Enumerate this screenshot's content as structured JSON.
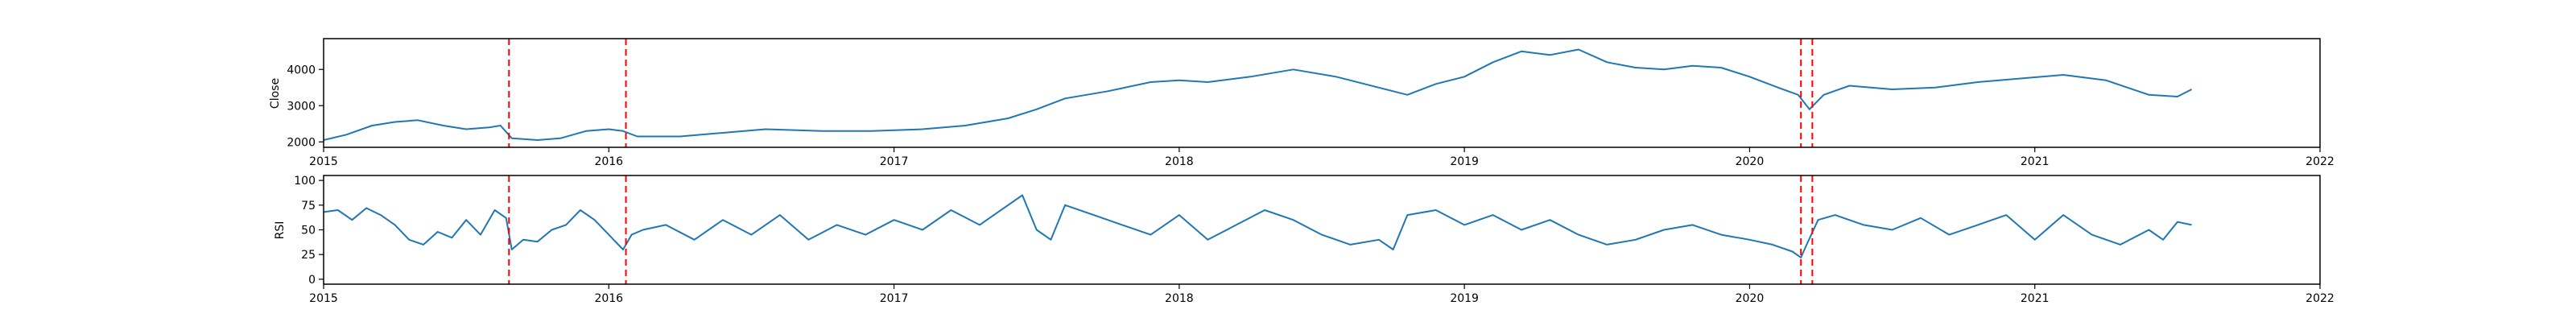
{
  "chart_data": [
    {
      "type": "line",
      "ylabel": "Close",
      "xlim": [
        2015,
        2022
      ],
      "x_ticks": [
        "2015",
        "2016",
        "2017",
        "2018",
        "2019",
        "2020",
        "2021",
        "2022"
      ],
      "ylim": [
        1850,
        4850
      ],
      "y_ticks": [
        2000,
        3000,
        4000
      ],
      "grid": false,
      "vlines": [
        {
          "x": 2015.65,
          "color": "#ff0000",
          "style": "dashed"
        },
        {
          "x": 2016.06,
          "color": "#ff0000",
          "style": "dashed"
        },
        {
          "x": 2020.18,
          "color": "#ff0000",
          "style": "dashed"
        },
        {
          "x": 2020.22,
          "color": "#ff0000",
          "style": "dashed"
        }
      ],
      "series": [
        {
          "color": "#1f77b4",
          "points": [
            [
              2015.0,
              2050
            ],
            [
              2015.08,
              2200
            ],
            [
              2015.17,
              2450
            ],
            [
              2015.25,
              2550
            ],
            [
              2015.33,
              2600
            ],
            [
              2015.42,
              2450
            ],
            [
              2015.5,
              2350
            ],
            [
              2015.58,
              2400
            ],
            [
              2015.62,
              2450
            ],
            [
              2015.66,
              2100
            ],
            [
              2015.75,
              2050
            ],
            [
              2015.83,
              2100
            ],
            [
              2015.92,
              2300
            ],
            [
              2016.0,
              2350
            ],
            [
              2016.05,
              2300
            ],
            [
              2016.1,
              2150
            ],
            [
              2016.25,
              2150
            ],
            [
              2016.4,
              2250
            ],
            [
              2016.55,
              2350
            ],
            [
              2016.75,
              2300
            ],
            [
              2016.92,
              2300
            ],
            [
              2017.1,
              2350
            ],
            [
              2017.25,
              2450
            ],
            [
              2017.4,
              2650
            ],
            [
              2017.5,
              2900
            ],
            [
              2017.6,
              3200
            ],
            [
              2017.75,
              3400
            ],
            [
              2017.9,
              3650
            ],
            [
              2018.0,
              3700
            ],
            [
              2018.1,
              3650
            ],
            [
              2018.25,
              3800
            ],
            [
              2018.4,
              4000
            ],
            [
              2018.55,
              3800
            ],
            [
              2018.65,
              3600
            ],
            [
              2018.8,
              3300
            ],
            [
              2018.9,
              3600
            ],
            [
              2019.0,
              3800
            ],
            [
              2019.1,
              4200
            ],
            [
              2019.2,
              4500
            ],
            [
              2019.3,
              4400
            ],
            [
              2019.4,
              4550
            ],
            [
              2019.5,
              4200
            ],
            [
              2019.6,
              4050
            ],
            [
              2019.7,
              4000
            ],
            [
              2019.8,
              4100
            ],
            [
              2019.9,
              4050
            ],
            [
              2020.0,
              3800
            ],
            [
              2020.1,
              3500
            ],
            [
              2020.17,
              3300
            ],
            [
              2020.21,
              2900
            ],
            [
              2020.26,
              3300
            ],
            [
              2020.35,
              3550
            ],
            [
              2020.5,
              3450
            ],
            [
              2020.65,
              3500
            ],
            [
              2020.8,
              3650
            ],
            [
              2020.95,
              3750
            ],
            [
              2021.1,
              3850
            ],
            [
              2021.25,
              3700
            ],
            [
              2021.4,
              3300
            ],
            [
              2021.5,
              3250
            ],
            [
              2021.55,
              3450
            ]
          ]
        }
      ]
    },
    {
      "type": "line",
      "ylabel": "RSI",
      "xlim": [
        2015,
        2022
      ],
      "x_ticks": [
        "2015",
        "2016",
        "2017",
        "2018",
        "2019",
        "2020",
        "2021",
        "2022"
      ],
      "ylim": [
        -5,
        105
      ],
      "y_ticks": [
        0,
        25,
        50,
        75,
        100
      ],
      "grid": false,
      "vlines": [
        {
          "x": 2015.65,
          "color": "#ff0000",
          "style": "dashed"
        },
        {
          "x": 2016.06,
          "color": "#ff0000",
          "style": "dashed"
        },
        {
          "x": 2020.18,
          "color": "#ff0000",
          "style": "dashed"
        },
        {
          "x": 2020.22,
          "color": "#ff0000",
          "style": "dashed"
        }
      ],
      "series": [
        {
          "color": "#1f77b4",
          "points": [
            [
              2015.0,
              68
            ],
            [
              2015.05,
              70
            ],
            [
              2015.1,
              60
            ],
            [
              2015.15,
              72
            ],
            [
              2015.2,
              65
            ],
            [
              2015.25,
              55
            ],
            [
              2015.3,
              40
            ],
            [
              2015.35,
              35
            ],
            [
              2015.4,
              48
            ],
            [
              2015.45,
              42
            ],
            [
              2015.5,
              60
            ],
            [
              2015.55,
              45
            ],
            [
              2015.6,
              70
            ],
            [
              2015.64,
              62
            ],
            [
              2015.66,
              30
            ],
            [
              2015.7,
              40
            ],
            [
              2015.75,
              38
            ],
            [
              2015.8,
              50
            ],
            [
              2015.85,
              55
            ],
            [
              2015.9,
              70
            ],
            [
              2015.95,
              60
            ],
            [
              2016.0,
              45
            ],
            [
              2016.05,
              30
            ],
            [
              2016.08,
              45
            ],
            [
              2016.12,
              50
            ],
            [
              2016.2,
              55
            ],
            [
              2016.3,
              40
            ],
            [
              2016.4,
              60
            ],
            [
              2016.5,
              45
            ],
            [
              2016.6,
              65
            ],
            [
              2016.7,
              40
            ],
            [
              2016.8,
              55
            ],
            [
              2016.9,
              45
            ],
            [
              2017.0,
              60
            ],
            [
              2017.1,
              50
            ],
            [
              2017.2,
              70
            ],
            [
              2017.3,
              55
            ],
            [
              2017.4,
              75
            ],
            [
              2017.45,
              85
            ],
            [
              2017.5,
              50
            ],
            [
              2017.55,
              40
            ],
            [
              2017.6,
              75
            ],
            [
              2017.7,
              65
            ],
            [
              2017.8,
              55
            ],
            [
              2017.9,
              45
            ],
            [
              2018.0,
              65
            ],
            [
              2018.1,
              40
            ],
            [
              2018.2,
              55
            ],
            [
              2018.3,
              70
            ],
            [
              2018.4,
              60
            ],
            [
              2018.5,
              45
            ],
            [
              2018.6,
              35
            ],
            [
              2018.7,
              40
            ],
            [
              2018.75,
              30
            ],
            [
              2018.8,
              65
            ],
            [
              2018.9,
              70
            ],
            [
              2019.0,
              55
            ],
            [
              2019.1,
              65
            ],
            [
              2019.2,
              50
            ],
            [
              2019.3,
              60
            ],
            [
              2019.4,
              45
            ],
            [
              2019.5,
              35
            ],
            [
              2019.6,
              40
            ],
            [
              2019.7,
              50
            ],
            [
              2019.8,
              55
            ],
            [
              2019.9,
              45
            ],
            [
              2020.0,
              40
            ],
            [
              2020.08,
              35
            ],
            [
              2020.15,
              28
            ],
            [
              2020.18,
              22
            ],
            [
              2020.2,
              35
            ],
            [
              2020.24,
              60
            ],
            [
              2020.3,
              65
            ],
            [
              2020.4,
              55
            ],
            [
              2020.5,
              50
            ],
            [
              2020.6,
              62
            ],
            [
              2020.7,
              45
            ],
            [
              2020.8,
              55
            ],
            [
              2020.9,
              65
            ],
            [
              2021.0,
              40
            ],
            [
              2021.1,
              65
            ],
            [
              2021.2,
              45
            ],
            [
              2021.3,
              35
            ],
            [
              2021.4,
              50
            ],
            [
              2021.45,
              40
            ],
            [
              2021.5,
              58
            ],
            [
              2021.55,
              55
            ]
          ]
        }
      ]
    }
  ]
}
